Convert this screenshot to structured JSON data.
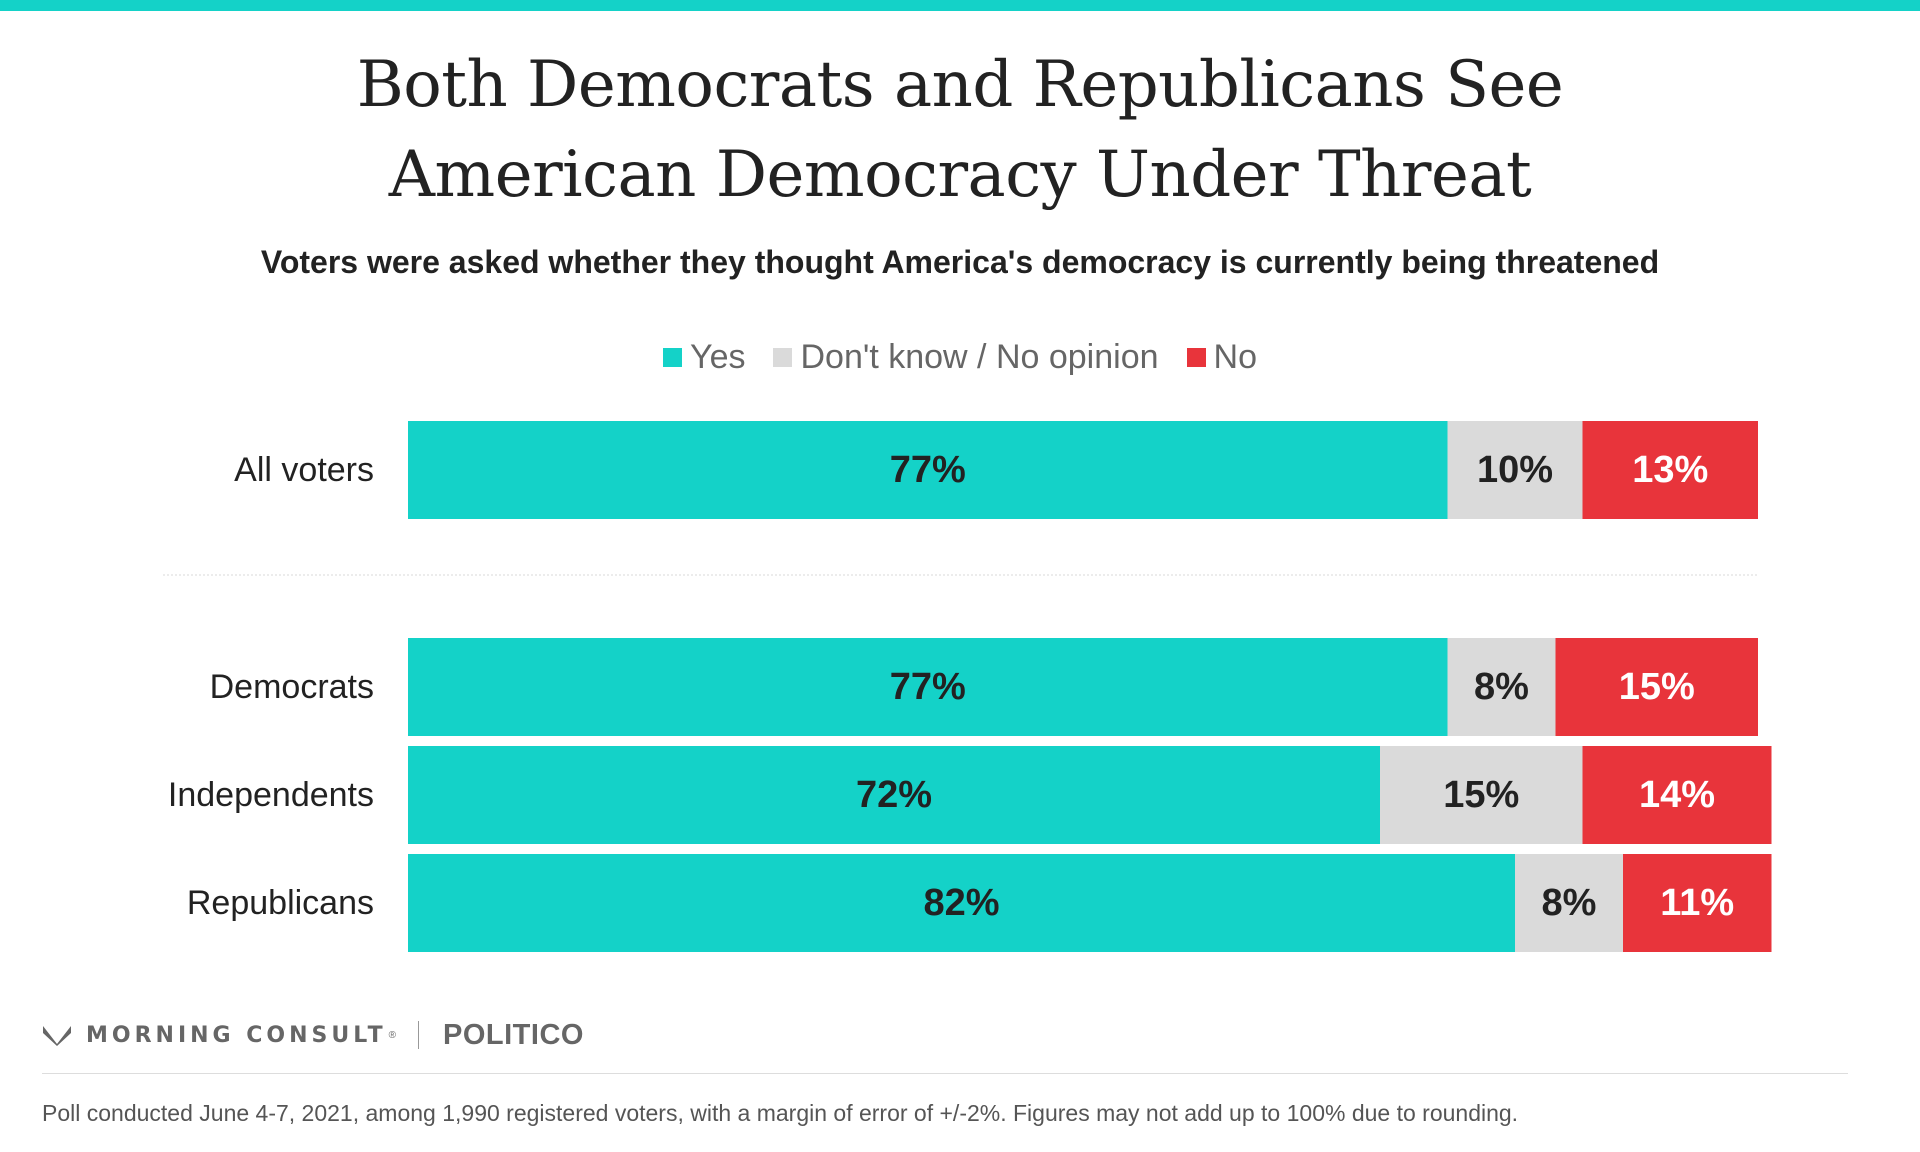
{
  "title_lines": [
    "Both Democrats and Republicans See",
    "American Democracy Under Threat"
  ],
  "subtitle": "Voters were asked whether they thought America's democracy is currently being threatened",
  "legend": [
    {
      "label": "Yes",
      "color": "#14d2c8"
    },
    {
      "label": "Don't know / No opinion",
      "color": "#dadada"
    },
    {
      "label": "No",
      "color": "#e8343b"
    }
  ],
  "chart_data": {
    "type": "bar",
    "orientation": "horizontal",
    "stacked": true,
    "categories": [
      "All voters",
      "Democrats",
      "Independents",
      "Republicans"
    ],
    "series": [
      {
        "name": "Yes",
        "color": "#14d2c8",
        "values": [
          77,
          77,
          72,
          82
        ],
        "labels": [
          "77%",
          "77%",
          "72%",
          "82%"
        ]
      },
      {
        "name": "Don't know / No opinion",
        "color": "#dadada",
        "values": [
          10,
          8,
          15,
          8
        ],
        "labels": [
          "10%",
          "8%",
          "15%",
          "8%"
        ]
      },
      {
        "name": "No",
        "color": "#e8343b",
        "values": [
          13,
          15,
          14,
          11
        ],
        "labels": [
          "13%",
          "15%",
          "14%",
          "11%"
        ]
      }
    ],
    "label_colors": [
      "#222222",
      "#222222",
      "#ffffff"
    ],
    "xlim": [
      0,
      100
    ],
    "grid": false,
    "legend_position": "top-center"
  },
  "branding": {
    "morning_consult": "MORNING CONSULT",
    "trademark": "®",
    "politico": "POLITICO"
  },
  "footnote": "Poll conducted June 4-7, 2021, among 1,990 registered voters, with a margin of error of +/-2%. Figures may not add up to 100% due to rounding."
}
